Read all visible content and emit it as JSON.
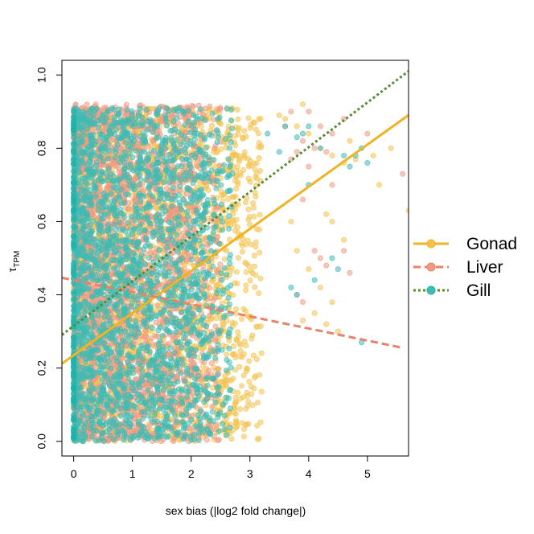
{
  "chart_data": {
    "type": "scatter",
    "xlabel": "sex bias (|log2 fold change|)",
    "ylabel_main": "τ",
    "ylabel_sub": "TPM",
    "xlim": [
      -0.2,
      5.7
    ],
    "ylim": [
      -0.04,
      1.04
    ],
    "x_ticks": [
      0,
      1,
      2,
      3,
      4,
      5
    ],
    "y_ticks": [
      0.0,
      0.2,
      0.4,
      0.6,
      0.8,
      1.0
    ],
    "x_tick_labels": [
      "0",
      "1",
      "2",
      "3",
      "4",
      "5"
    ],
    "y_tick_labels": [
      "0.0",
      "0.2",
      "0.4",
      "0.6",
      "0.8",
      "1.0"
    ],
    "grid": false,
    "legend_position": "right",
    "series": [
      {
        "name": "Gonad",
        "color": "#F0B323",
        "point_color": "#F2C24E",
        "line_style": "solid",
        "fit": {
          "intercept": 0.235,
          "slope": 0.115
        },
        "cloud": {
          "x_max": 3.2,
          "y_min": 0.0,
          "y_max": 0.91
        },
        "outliers": [
          [
            3.6,
            0.88
          ],
          [
            3.8,
            0.86
          ],
          [
            4.0,
            0.84
          ],
          [
            4.2,
            0.8
          ],
          [
            4.4,
            0.78
          ],
          [
            4.6,
            0.76
          ],
          [
            4.8,
            0.77
          ],
          [
            3.7,
            0.6
          ],
          [
            3.8,
            0.52
          ],
          [
            4.0,
            0.47
          ],
          [
            4.2,
            0.42
          ],
          [
            4.4,
            0.38
          ],
          [
            3.9,
            0.33
          ],
          [
            4.1,
            0.35
          ],
          [
            4.3,
            0.32
          ],
          [
            4.5,
            0.3
          ],
          [
            4.3,
            0.62
          ],
          [
            4.4,
            0.6
          ],
          [
            4.6,
            0.55
          ],
          [
            5.2,
            0.7
          ],
          [
            5.1,
            0.78
          ],
          [
            5.4,
            0.8
          ],
          [
            5.7,
            0.63
          ],
          [
            3.5,
            0.89
          ],
          [
            3.9,
            0.92
          ],
          [
            4.7,
            0.82
          ]
        ]
      },
      {
        "name": "Liver",
        "color": "#E8826A",
        "point_color": "#EE9A85",
        "line_style": "dashed",
        "fit": {
          "intercept": 0.44,
          "slope": -0.033
        },
        "cloud": {
          "x_max": 2.5,
          "y_min": 0.0,
          "y_max": 0.92
        },
        "outliers": [
          [
            3.9,
            0.82
          ],
          [
            4.1,
            0.8
          ],
          [
            4.3,
            0.79
          ],
          [
            4.0,
            0.75
          ],
          [
            4.2,
            0.86
          ],
          [
            4.4,
            0.84
          ],
          [
            4.6,
            0.88
          ],
          [
            3.7,
            0.77
          ],
          [
            3.8,
            0.79
          ],
          [
            3.9,
            0.66
          ],
          [
            4.1,
            0.52
          ],
          [
            4.3,
            0.48
          ],
          [
            3.8,
            0.4
          ],
          [
            3.9,
            0.38
          ],
          [
            4.2,
            0.5
          ],
          [
            4.6,
            0.52
          ],
          [
            4.7,
            0.46
          ],
          [
            5.0,
            0.84
          ],
          [
            5.6,
            0.73
          ],
          [
            4.4,
            0.7
          ],
          [
            3.6,
            0.86
          ],
          [
            3.7,
            0.9
          ],
          [
            4.0,
            0.9
          ]
        ]
      },
      {
        "name": "Gill",
        "color": "#20B2AA",
        "point_color": "#3EBCB4",
        "line_style": "dotted",
        "fit": {
          "intercept": 0.315,
          "slope": 0.122,
          "line_color": "#5A8A35"
        },
        "cloud": {
          "x_max": 2.7,
          "y_min": 0.0,
          "y_max": 0.91
        },
        "outliers": [
          [
            3.8,
            0.83
          ],
          [
            3.9,
            0.84
          ],
          [
            4.0,
            0.86
          ],
          [
            4.2,
            0.8
          ],
          [
            4.6,
            0.78
          ],
          [
            4.7,
            0.75
          ],
          [
            4.8,
            0.78
          ],
          [
            4.9,
            0.8
          ],
          [
            5.0,
            0.76
          ],
          [
            4.4,
            0.5
          ],
          [
            4.5,
            0.47
          ],
          [
            4.9,
            0.27
          ],
          [
            3.8,
            0.4
          ],
          [
            3.7,
            0.42
          ],
          [
            4.1,
            0.44
          ],
          [
            4.0,
            0.7
          ],
          [
            3.5,
            0.79
          ],
          [
            3.6,
            0.86
          ],
          [
            3.3,
            0.84
          ]
        ]
      }
    ]
  }
}
